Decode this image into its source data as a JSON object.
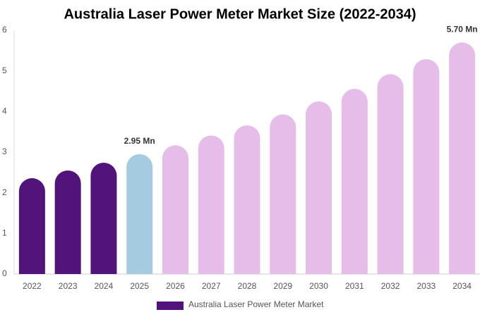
{
  "chart_data": {
    "type": "bar",
    "title": "Australia Laser Power Meter Market Size (2022-2034)",
    "categories": [
      "2022",
      "2023",
      "2024",
      "2025",
      "2026",
      "2027",
      "2028",
      "2029",
      "2030",
      "2031",
      "2032",
      "2033",
      "2034"
    ],
    "series": [
      {
        "name": "Australia Laser Power Meter Market",
        "color": "#52137a",
        "values": [
          2.36,
          2.55,
          2.74,
          2.95,
          3.17,
          3.41,
          3.66,
          3.93,
          4.25,
          4.56,
          4.92,
          5.29,
          5.7
        ],
        "colors": [
          "#52137a",
          "#52137a",
          "#52137a",
          "#a4cbe0",
          "#e6bde9",
          "#e6bde9",
          "#e6bde9",
          "#e6bde9",
          "#e6bde9",
          "#e6bde9",
          "#e6bde9",
          "#e6bde9",
          "#e6bde9"
        ],
        "value_labels": [
          null,
          null,
          null,
          "2.95 Mn",
          null,
          null,
          null,
          null,
          null,
          null,
          null,
          null,
          "5.70 Mn"
        ]
      }
    ],
    "ylim": [
      0,
      6
    ],
    "yticks": [
      0,
      1,
      2,
      3,
      4,
      5,
      6
    ],
    "grid": false
  }
}
